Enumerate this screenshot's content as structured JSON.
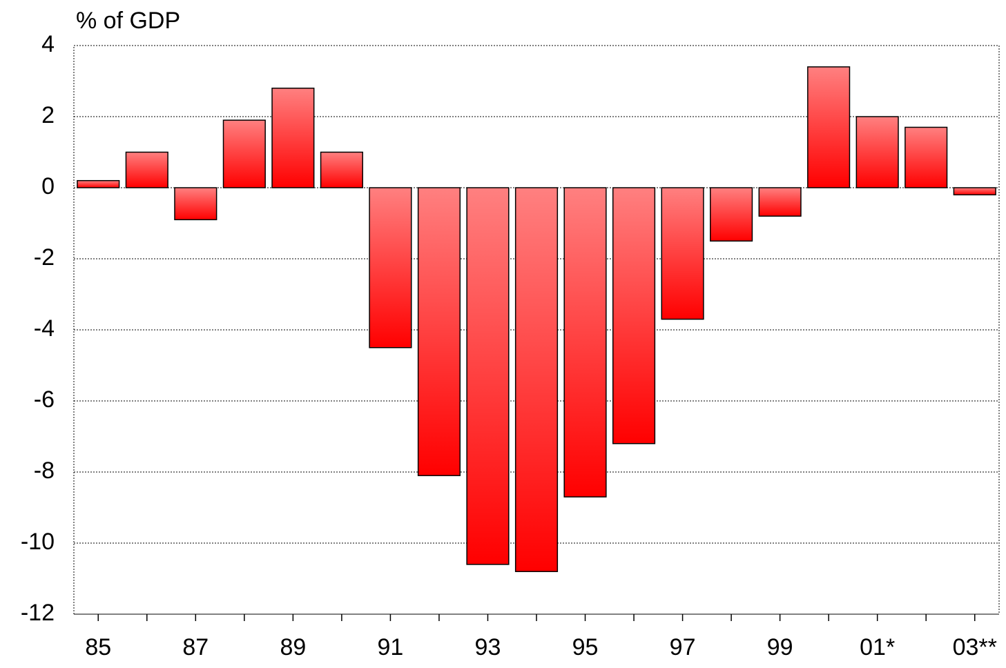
{
  "chart_data": {
    "type": "bar",
    "y_label": "%  of GDP",
    "categories": [
      "85",
      null,
      "87",
      null,
      "89",
      null,
      "91",
      null,
      "93",
      null,
      "95",
      null,
      "97",
      null,
      "99",
      null,
      "01*",
      null,
      "03**"
    ],
    "values": [
      0.2,
      1.0,
      -0.9,
      1.9,
      2.8,
      1.0,
      -4.5,
      -8.1,
      -10.6,
      -10.8,
      -8.7,
      -7.2,
      -3.7,
      -1.5,
      -0.8,
      3.4,
      2.0,
      1.7,
      -0.2
    ],
    "color": "#ff0000",
    "ylim": [
      -12,
      4
    ],
    "yticks": [
      -12,
      -10,
      -8,
      -6,
      -4,
      -2,
      0,
      2,
      4
    ],
    "grid": true
  }
}
